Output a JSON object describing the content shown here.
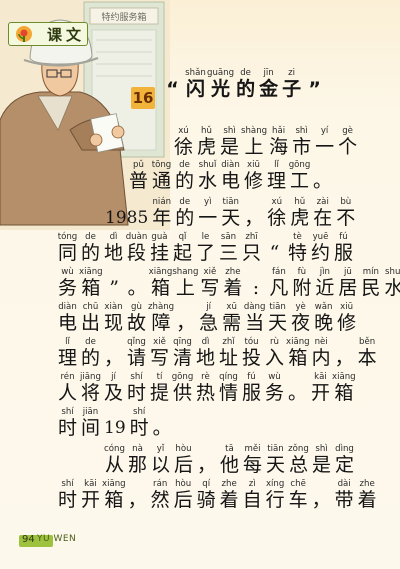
{
  "header": {
    "label": "课文"
  },
  "title": {
    "number": "16",
    "tokens": [
      {
        "py": "",
        "hz": "“"
      },
      {
        "py": "shǎn",
        "hz": "闪"
      },
      {
        "py": "guāng",
        "hz": "光"
      },
      {
        "py": "de",
        "hz": "的"
      },
      {
        "py": "jīn",
        "hz": "金"
      },
      {
        "py": "zi",
        "hz": "子"
      },
      {
        "py": "",
        "hz": "”"
      }
    ]
  },
  "lines": [
    [
      {
        "py": "xú",
        "hz": "徐"
      },
      {
        "py": "hǔ",
        "hz": "虎"
      },
      {
        "py": "shì",
        "hz": "是"
      },
      {
        "py": "shàng",
        "hz": "上"
      },
      {
        "py": "hǎi",
        "hz": "海"
      },
      {
        "py": "shì",
        "hz": "市"
      },
      {
        "py": "yí",
        "hz": "一"
      },
      {
        "py": "gè",
        "hz": "个"
      }
    ],
    [
      {
        "py": "pǔ",
        "hz": "普"
      },
      {
        "py": "tōng",
        "hz": "通"
      },
      {
        "py": "de",
        "hz": "的"
      },
      {
        "py": "shuǐ",
        "hz": "水"
      },
      {
        "py": "diàn",
        "hz": "电"
      },
      {
        "py": "xiū",
        "hz": "修"
      },
      {
        "py": "lǐ",
        "hz": "理"
      },
      {
        "py": "gōng",
        "hz": "工"
      },
      {
        "py": "",
        "hz": "。"
      }
    ],
    [
      {
        "py": "",
        "hz": "1985"
      },
      {
        "py": "nián",
        "hz": "年"
      },
      {
        "py": "de",
        "hz": "的"
      },
      {
        "py": "yì",
        "hz": "一"
      },
      {
        "py": "tiān",
        "hz": "天"
      },
      {
        "py": "",
        "hz": "，"
      },
      {
        "py": "xú",
        "hz": "徐"
      },
      {
        "py": "hǔ",
        "hz": "虎"
      },
      {
        "py": "zài",
        "hz": "在"
      },
      {
        "py": "bù",
        "hz": "不"
      }
    ],
    [
      {
        "py": "tóng",
        "hz": "同"
      },
      {
        "py": "de",
        "hz": "的"
      },
      {
        "py": "dì",
        "hz": "地"
      },
      {
        "py": "duàn",
        "hz": "段"
      },
      {
        "py": "guà",
        "hz": "挂"
      },
      {
        "py": "qǐ",
        "hz": "起"
      },
      {
        "py": "le",
        "hz": "了"
      },
      {
        "py": "sān",
        "hz": "三"
      },
      {
        "py": "zhī",
        "hz": "只"
      },
      {
        "py": "",
        "hz": "“"
      },
      {
        "py": "tè",
        "hz": "特"
      },
      {
        "py": "yuē",
        "hz": "约"
      },
      {
        "py": "fú",
        "hz": "服"
      }
    ],
    [
      {
        "py": "wù",
        "hz": "务"
      },
      {
        "py": "xiāng",
        "hz": "箱"
      },
      {
        "py": "",
        "hz": "”"
      },
      {
        "py": "",
        "hz": "。"
      },
      {
        "py": "xiāng",
        "hz": "箱"
      },
      {
        "py": "shang",
        "hz": "上"
      },
      {
        "py": "xiě",
        "hz": "写"
      },
      {
        "py": "zhe",
        "hz": "着"
      },
      {
        "py": "",
        "hz": ":"
      },
      {
        "py": "fán",
        "hz": "凡"
      },
      {
        "py": "fù",
        "hz": "附"
      },
      {
        "py": "jìn",
        "hz": "近"
      },
      {
        "py": "jū",
        "hz": "居"
      },
      {
        "py": "mín",
        "hz": "民"
      },
      {
        "py": "shuǐ",
        "hz": "水"
      }
    ],
    [
      {
        "py": "diàn",
        "hz": "电"
      },
      {
        "py": "chū",
        "hz": "出"
      },
      {
        "py": "xiàn",
        "hz": "现"
      },
      {
        "py": "gù",
        "hz": "故"
      },
      {
        "py": "zhàng",
        "hz": "障"
      },
      {
        "py": "",
        "hz": "，"
      },
      {
        "py": "jí",
        "hz": "急"
      },
      {
        "py": "xū",
        "hz": "需"
      },
      {
        "py": "dàng",
        "hz": "当"
      },
      {
        "py": "tiān",
        "hz": "天"
      },
      {
        "py": "yè",
        "hz": "夜"
      },
      {
        "py": "wǎn",
        "hz": "晚"
      },
      {
        "py": "xiū",
        "hz": "修"
      }
    ],
    [
      {
        "py": "lǐ",
        "hz": "理"
      },
      {
        "py": "de",
        "hz": "的"
      },
      {
        "py": "",
        "hz": "，"
      },
      {
        "py": "qǐng",
        "hz": "请"
      },
      {
        "py": "xiě",
        "hz": "写"
      },
      {
        "py": "qīng",
        "hz": "清"
      },
      {
        "py": "dì",
        "hz": "地"
      },
      {
        "py": "zhǐ",
        "hz": "址"
      },
      {
        "py": "tóu",
        "hz": "投"
      },
      {
        "py": "rù",
        "hz": "入"
      },
      {
        "py": "xiāng",
        "hz": "箱"
      },
      {
        "py": "nèi",
        "hz": "内"
      },
      {
        "py": "",
        "hz": "，"
      },
      {
        "py": "běn",
        "hz": "本"
      }
    ],
    [
      {
        "py": "rén",
        "hz": "人"
      },
      {
        "py": "jiāng",
        "hz": "将"
      },
      {
        "py": "jí",
        "hz": "及"
      },
      {
        "py": "shí",
        "hz": "时"
      },
      {
        "py": "tí",
        "hz": "提"
      },
      {
        "py": "gōng",
        "hz": "供"
      },
      {
        "py": "rè",
        "hz": "热"
      },
      {
        "py": "qíng",
        "hz": "情"
      },
      {
        "py": "fú",
        "hz": "服"
      },
      {
        "py": "wù",
        "hz": "务"
      },
      {
        "py": "",
        "hz": "。"
      },
      {
        "py": "kāi",
        "hz": "开"
      },
      {
        "py": "xiāng",
        "hz": "箱"
      }
    ],
    [
      {
        "py": "shí",
        "hz": "时"
      },
      {
        "py": "jiān",
        "hz": "间"
      },
      {
        "py": "",
        "hz": "19"
      },
      {
        "py": "shí",
        "hz": "时"
      },
      {
        "py": "",
        "hz": "。"
      }
    ],
    [
      {
        "py": "cóng",
        "hz": "从"
      },
      {
        "py": "nà",
        "hz": "那"
      },
      {
        "py": "yǐ",
        "hz": "以"
      },
      {
        "py": "hòu",
        "hz": "后"
      },
      {
        "py": "",
        "hz": "，"
      },
      {
        "py": "tā",
        "hz": "他"
      },
      {
        "py": "měi",
        "hz": "每"
      },
      {
        "py": "tiān",
        "hz": "天"
      },
      {
        "py": "zǒng",
        "hz": "总"
      },
      {
        "py": "shì",
        "hz": "是"
      },
      {
        "py": "dìng",
        "hz": "定"
      }
    ],
    [
      {
        "py": "shí",
        "hz": "时"
      },
      {
        "py": "kāi",
        "hz": "开"
      },
      {
        "py": "xiāng",
        "hz": "箱"
      },
      {
        "py": "",
        "hz": "，"
      },
      {
        "py": "rán",
        "hz": "然"
      },
      {
        "py": "hòu",
        "hz": "后"
      },
      {
        "py": "qí",
        "hz": "骑"
      },
      {
        "py": "zhe",
        "hz": "着"
      },
      {
        "py": "zì",
        "hz": "自"
      },
      {
        "py": "xíng",
        "hz": "行"
      },
      {
        "py": "chē",
        "hz": "车"
      },
      {
        "py": "",
        "hz": "，"
      },
      {
        "py": "dài",
        "hz": "带"
      },
      {
        "py": "zhe",
        "hz": "着"
      }
    ]
  ],
  "footer": {
    "page": "94",
    "subject": "YU WEN"
  },
  "illustration": {
    "board_text": "特约服务箱"
  },
  "colors": {
    "accent": "#9ec23e",
    "title_badge": "#f2b33b"
  }
}
